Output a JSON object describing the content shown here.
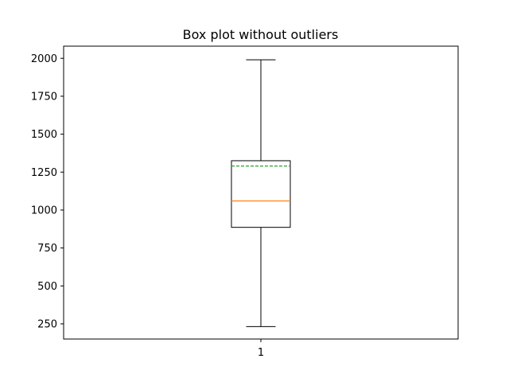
{
  "chart_data": {
    "type": "box",
    "title": "Box plot without outliers",
    "xlabel": "",
    "ylabel": "",
    "categories": [
      "1"
    ],
    "boxes": [
      {
        "label": "1",
        "whisker_low": 232,
        "q1": 886,
        "median": 1060,
        "mean": 1290,
        "q3": 1325,
        "whisker_high": 1990
      }
    ],
    "ylim": [
      150,
      2080
    ],
    "yticks": [
      250,
      500,
      750,
      1000,
      1250,
      1500,
      1750,
      2000
    ],
    "ytick_labels": [
      "250",
      "500",
      "750",
      "1000",
      "1250",
      "1500",
      "1750",
      "2000"
    ],
    "grid": false,
    "legend": "none",
    "show_outliers": false,
    "show_mean_line": true,
    "colors": {
      "box": "#000000",
      "median": "#ff7f0e",
      "mean": "#2ca02c",
      "whisker": "#000000"
    }
  }
}
